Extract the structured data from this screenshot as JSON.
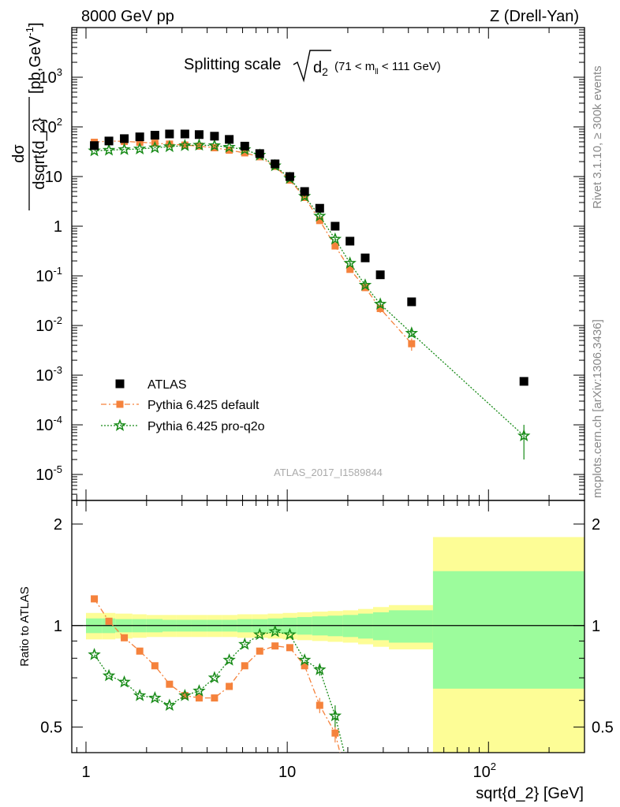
{
  "header": {
    "left": "8000 GeV pp",
    "right": "Z (Drell-Yan)"
  },
  "side_labels": {
    "rivet": "Rivet 3.1.10, ≥ 300k events",
    "mcplots": "mcplots.cern.ch [arXiv:1306.3436]"
  },
  "analysis_id": "ATLAS_2017_I1589844",
  "colors": {
    "data": "#000000",
    "default": "#f5823c",
    "proq2o": "#178a17",
    "band_inner": "#9cfc9c",
    "band_outer": "#fdfd96"
  },
  "chart_data": [
    {
      "type": "scatter",
      "panel": "main",
      "title": "Splitting scale √d₂ (71 < m_ll < 111 GeV)",
      "title_parts": {
        "main": "Splitting scale",
        "var": "d",
        "var_sub": "2",
        "range": "(71 < m",
        "range_sub": "ll",
        "range_end": " < 111 GeV)"
      },
      "ylabel": "dσ/dsqrt{d_2} [pb,GeV⁻¹]",
      "ylabel_parts": {
        "num": "dσ",
        "den": "dsqrt{d_2}",
        "unit": "[pb,GeV",
        "unit_sup": "-1",
        "unit_end": "]"
      },
      "xlabel": "sqrt{d_2} [GeV]",
      "x_scale": "log",
      "y_scale": "log",
      "xlim": [
        0.85,
        300
      ],
      "ylim": [
        3e-06,
        10000.0
      ],
      "x_ticks": [
        {
          "value": 1,
          "label": "1"
        },
        {
          "value": 10,
          "label": "10"
        },
        {
          "value": 100,
          "label": "10",
          "sup": "2"
        }
      ],
      "y_ticks": [
        {
          "value": 1e-05,
          "base": "10",
          "sup": "-5"
        },
        {
          "value": 0.0001,
          "base": "10",
          "sup": "-4"
        },
        {
          "value": 0.001,
          "base": "10",
          "sup": "-3"
        },
        {
          "value": 0.01,
          "base": "10",
          "sup": "-2"
        },
        {
          "value": 0.1,
          "base": "10",
          "sup": "-1"
        },
        {
          "value": 1,
          "base": "1",
          "sup": ""
        },
        {
          "value": 10,
          "base": "10",
          "sup": ""
        },
        {
          "value": 100,
          "base": "10",
          "sup": "2"
        },
        {
          "value": 1000,
          "base": "10",
          "sup": "3"
        }
      ],
      "legend_position": "bottom-left",
      "series": [
        {
          "name": "ATLAS",
          "marker": "square",
          "x": [
            1.1,
            1.3,
            1.55,
            1.85,
            2.2,
            2.6,
            3.1,
            3.65,
            4.35,
            5.15,
            6.15,
            7.3,
            8.7,
            10.3,
            12.2,
            14.5,
            17.3,
            20.5,
            24.4,
            29.0,
            41.5,
            150
          ],
          "y": [
            42,
            52,
            58,
            63,
            68,
            72,
            72,
            70,
            65,
            56,
            41,
            29,
            18,
            10,
            5,
            2.3,
            1.0,
            0.5,
            0.23,
            0.105,
            0.03,
            0.00075
          ]
        },
        {
          "name": "Pythia 6.425 default",
          "marker": "square-small",
          "line": "dashdot",
          "x": [
            1.1,
            1.3,
            1.55,
            1.85,
            2.2,
            2.6,
            3.1,
            3.65,
            4.35,
            5.15,
            6.15,
            7.3,
            8.7,
            10.3,
            12.2,
            14.5,
            17.3,
            20.5,
            24.4,
            29.0,
            41.5
          ],
          "y": [
            49,
            52,
            51,
            49,
            47,
            45,
            43,
            41,
            38,
            34,
            30,
            25,
            16,
            8.5,
            3.8,
            1.3,
            0.4,
            0.135,
            0.058,
            0.022,
            0.0043
          ],
          "err": [
            0,
            0,
            0,
            0,
            0,
            0,
            0,
            0,
            0,
            0,
            0,
            0,
            0,
            0,
            0,
            0.1,
            0.04,
            0.015,
            0.008,
            0.004,
            0.0012
          ]
        },
        {
          "name": "Pythia 6.425 pro-q2o",
          "marker": "star",
          "line": "dotted",
          "x": [
            1.1,
            1.3,
            1.55,
            1.85,
            2.2,
            2.6,
            3.1,
            3.65,
            4.35,
            5.15,
            6.15,
            7.3,
            8.7,
            10.3,
            12.2,
            14.5,
            17.3,
            20.5,
            24.4,
            29.0,
            41.5,
            150
          ],
          "y": [
            33,
            34,
            35,
            36,
            38,
            40,
            42,
            43,
            42,
            39,
            35,
            27,
            16.5,
            9.2,
            4.0,
            1.6,
            0.55,
            0.18,
            0.065,
            0.027,
            0.007,
            6e-05
          ],
          "err": [
            0,
            0,
            0,
            0,
            0,
            0,
            0,
            0,
            0,
            0,
            0,
            0,
            0,
            0,
            0,
            0.12,
            0.05,
            0.02,
            0.008,
            0.004,
            0.0011,
            4e-05
          ]
        }
      ]
    },
    {
      "type": "line",
      "panel": "ratio",
      "ylabel": "Ratio to ATLAS",
      "xlabel": "sqrt{d_2} [GeV]",
      "x_scale": "log",
      "y_scale": "log",
      "xlim": [
        0.85,
        300
      ],
      "ylim": [
        0.42,
        2.35
      ],
      "y_ticks": [
        0.5,
        1,
        2
      ],
      "reference_line": 1,
      "band_edges": [
        1.0,
        1.2,
        1.4,
        1.7,
        2.0,
        2.4,
        2.8,
        3.35,
        4.0,
        4.75,
        5.65,
        6.7,
        8.0,
        9.5,
        11.2,
        13.3,
        15.9,
        18.9,
        22.5,
        26.7,
        32,
        53,
        300
      ],
      "band_inner": [
        [
          0.95,
          1.05
        ],
        [
          0.95,
          1.05
        ],
        [
          0.955,
          1.045
        ],
        [
          0.955,
          1.045
        ],
        [
          0.955,
          1.045
        ],
        [
          0.96,
          1.04
        ],
        [
          0.96,
          1.04
        ],
        [
          0.96,
          1.04
        ],
        [
          0.96,
          1.04
        ],
        [
          0.96,
          1.04
        ],
        [
          0.955,
          1.045
        ],
        [
          0.955,
          1.045
        ],
        [
          0.95,
          1.05
        ],
        [
          0.945,
          1.055
        ],
        [
          0.94,
          1.06
        ],
        [
          0.935,
          1.065
        ],
        [
          0.93,
          1.07
        ],
        [
          0.925,
          1.075
        ],
        [
          0.915,
          1.085
        ],
        [
          0.905,
          1.095
        ],
        [
          0.89,
          1.11
        ],
        [
          0.65,
          1.45
        ]
      ],
      "band_outer": [
        [
          0.91,
          1.09
        ],
        [
          0.91,
          1.09
        ],
        [
          0.915,
          1.085
        ],
        [
          0.92,
          1.08
        ],
        [
          0.925,
          1.075
        ],
        [
          0.925,
          1.075
        ],
        [
          0.925,
          1.075
        ],
        [
          0.925,
          1.075
        ],
        [
          0.925,
          1.075
        ],
        [
          0.925,
          1.075
        ],
        [
          0.92,
          1.08
        ],
        [
          0.92,
          1.08
        ],
        [
          0.915,
          1.085
        ],
        [
          0.91,
          1.09
        ],
        [
          0.905,
          1.095
        ],
        [
          0.9,
          1.1
        ],
        [
          0.895,
          1.105
        ],
        [
          0.89,
          1.11
        ],
        [
          0.88,
          1.12
        ],
        [
          0.865,
          1.135
        ],
        [
          0.85,
          1.15
        ],
        [
          0.4,
          1.83
        ]
      ],
      "series": [
        {
          "name": "Pythia 6.425 default",
          "marker": "square-small",
          "line": "dashdot",
          "x": [
            1.1,
            1.3,
            1.55,
            1.85,
            2.2,
            2.6,
            3.1,
            3.65,
            4.35,
            5.15,
            6.15,
            7.3,
            8.7,
            10.3,
            12.2,
            14.5,
            17.3
          ],
          "y": [
            1.2,
            1.03,
            0.92,
            0.84,
            0.76,
            0.67,
            0.62,
            0.61,
            0.61,
            0.66,
            0.76,
            0.84,
            0.87,
            0.86,
            0.76,
            0.58,
            0.48
          ],
          "err": [
            0,
            0,
            0,
            0,
            0,
            0,
            0,
            0,
            0,
            0,
            0,
            0,
            0,
            0,
            0,
            0.03,
            0.03
          ]
        },
        {
          "name": "Pythia 6.425 pro-q2o",
          "marker": "star",
          "line": "dotted",
          "x": [
            1.1,
            1.3,
            1.55,
            1.85,
            2.2,
            2.6,
            3.1,
            3.65,
            4.35,
            5.15,
            6.15,
            7.3,
            8.7,
            10.3,
            12.2,
            14.5,
            17.3
          ],
          "y": [
            0.82,
            0.71,
            0.68,
            0.62,
            0.61,
            0.58,
            0.62,
            0.64,
            0.7,
            0.79,
            0.88,
            0.94,
            0.96,
            0.94,
            0.79,
            0.74,
            0.54
          ],
          "err": [
            0,
            0,
            0,
            0,
            0,
            0,
            0,
            0,
            0,
            0,
            0,
            0,
            0,
            0,
            0,
            0.03,
            0.04
          ]
        }
      ]
    }
  ]
}
